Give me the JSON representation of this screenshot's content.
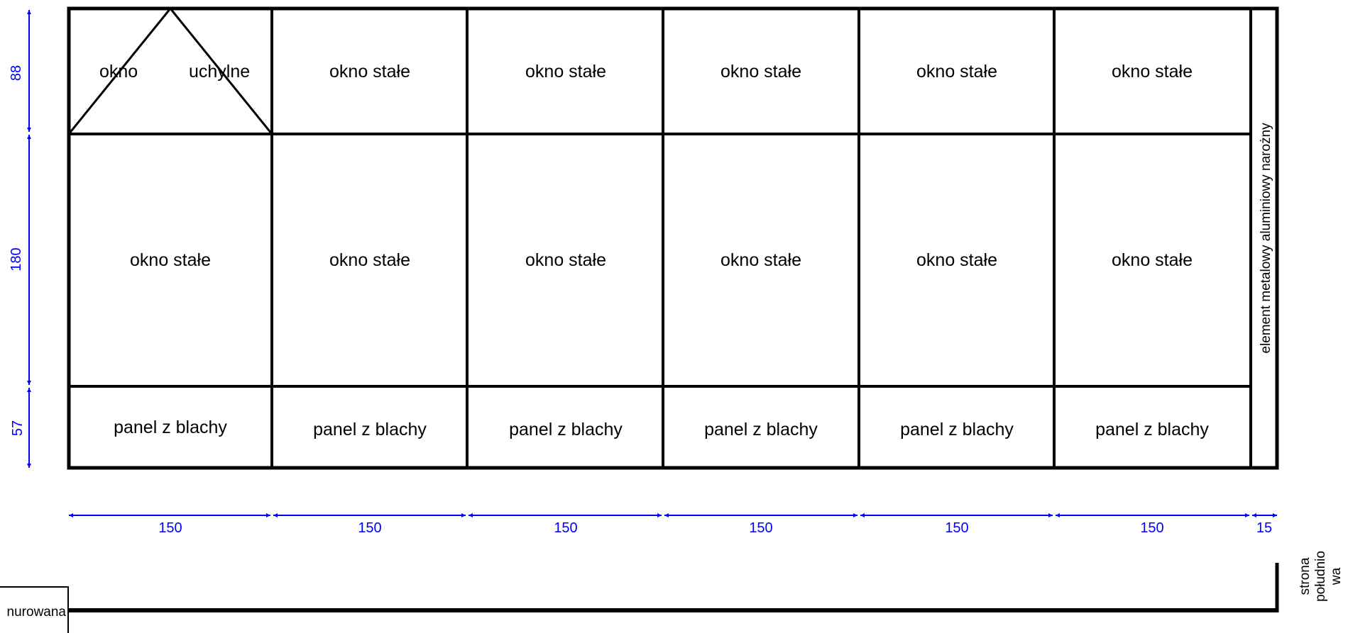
{
  "colors": {
    "frame": "#000000",
    "dimension": "#0000ff",
    "background": "#ffffff"
  },
  "grid": {
    "top_row": {
      "pivot_window_left": "okno",
      "pivot_window_right": "uchylne",
      "fixed_windows": [
        "okno stałe",
        "okno stałe",
        "okno stałe",
        "okno stałe",
        "okno stałe"
      ]
    },
    "middle_row": {
      "fixed_windows": [
        "okno stałe",
        "okno stałe",
        "okno stałe",
        "okno stałe",
        "okno stałe",
        "okno stałe"
      ]
    },
    "bottom_row": {
      "panels": [
        "panel z blachy",
        "panel z blachy",
        "panel z blachy",
        "panel z blachy",
        "panel z blachy",
        "panel z blachy"
      ]
    },
    "corner_element_label": "element metalowy aluminiowy narożny"
  },
  "dimensions": {
    "heights": [
      "88",
      "180",
      "57"
    ],
    "widths": [
      "150",
      "150",
      "150",
      "150",
      "150",
      "150",
      "15"
    ]
  },
  "plan": {
    "wall_label": "nurowana",
    "side_label_lines": [
      "strona",
      "południo",
      "wa"
    ]
  }
}
